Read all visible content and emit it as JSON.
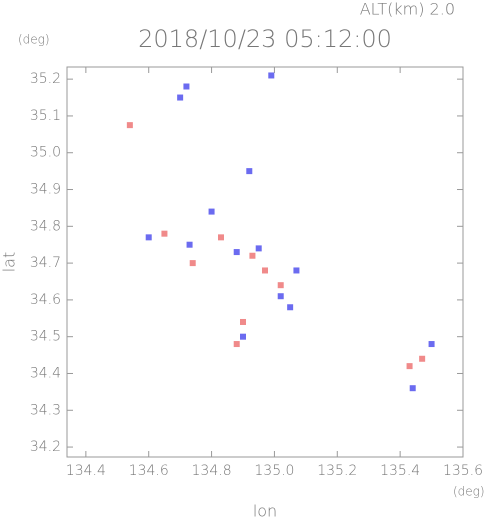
{
  "chart_data": {
    "type": "scatter",
    "title": "2018/10/23 05:12:00",
    "subtitle": "ALT(km) 2.0",
    "y_unit": "(deg)",
    "x_unit": "(deg)",
    "x_label": "lon",
    "y_label": "lat",
    "xlim": [
      134.34,
      135.6
    ],
    "ylim": [
      34.173,
      35.233
    ],
    "xticks": [
      134.4,
      134.6,
      134.8,
      {
        "value": 135.0,
        "label": "135.0"
      },
      135.2,
      135.4,
      135.6
    ],
    "yticks": [
      34.2,
      34.3,
      34.4,
      34.5,
      34.6,
      34.7,
      34.8,
      34.9,
      {
        "value": 35.0,
        "label": "35.0"
      },
      35.1,
      35.2
    ],
    "series": [
      {
        "color": "#f08a8a",
        "x": [
          134.54,
          134.65,
          134.88,
          134.74,
          134.97,
          135.43,
          135.02,
          134.9,
          134.83,
          135.47,
          134.93
        ],
        "values": [
          35.075,
          34.78,
          34.48,
          34.7,
          34.68,
          34.42,
          34.64,
          34.54,
          34.77,
          34.44,
          34.72
        ]
      },
      {
        "color": "#6b6bf0",
        "x": [
          134.7,
          134.72,
          134.99,
          134.92,
          134.8,
          134.88,
          134.9,
          134.95,
          135.05,
          135.5,
          135.44,
          134.6,
          134.73,
          135.07,
          135.02
        ],
        "values": [
          35.15,
          35.18,
          35.21,
          34.95,
          34.84,
          34.73,
          34.5,
          34.74,
          34.58,
          34.48,
          34.36,
          34.77,
          34.75,
          34.68,
          34.61
        ]
      }
    ]
  }
}
